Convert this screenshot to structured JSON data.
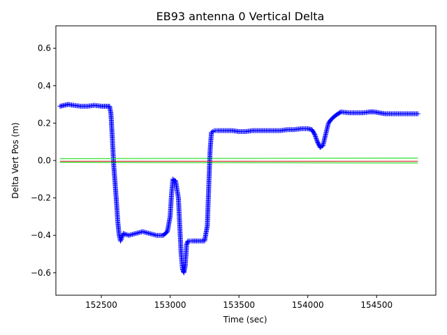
{
  "chart_data": {
    "type": "scatter",
    "title": "EB93 antenna 0 Vertical Delta",
    "xlabel": "Time (sec)",
    "ylabel": "Delta Vert Pos (m)",
    "xlim": [
      152170,
      154930
    ],
    "ylim": [
      -0.72,
      0.72
    ],
    "x_ticks": [
      152500,
      153000,
      153500,
      154000,
      154500
    ],
    "x_tick_labels": [
      "152500",
      "153000",
      "153500",
      "154000",
      "154500"
    ],
    "y_ticks": [
      -0.6,
      -0.4,
      -0.2,
      0.0,
      0.2,
      0.4,
      0.6
    ],
    "y_tick_labels": [
      "−0.6",
      "−0.4",
      "−0.2",
      "0.0",
      "0.2",
      "0.4",
      "0.6"
    ],
    "grid": false,
    "series": [
      {
        "color": "#0000ff",
        "marker": "+",
        "x": [
          152200,
          152230,
          152260,
          152300,
          152350,
          152400,
          152450,
          152500,
          152530,
          152560,
          152570,
          152580,
          152590,
          152600,
          152610,
          152620,
          152630,
          152640,
          152660,
          152700,
          152750,
          152800,
          152850,
          152900,
          152950,
          152980,
          153000,
          153010,
          153020,
          153040,
          153060,
          153070,
          153080,
          153090,
          153100,
          153110,
          153120,
          153130,
          153140,
          153160,
          153200,
          153250,
          153270,
          153280,
          153290,
          153300,
          153310,
          153320,
          153340,
          153400,
          153450,
          153500,
          153550,
          153600,
          153650,
          153700,
          153750,
          153800,
          153850,
          153900,
          153950,
          154000,
          154030,
          154050,
          154070,
          154090,
          154110,
          154130,
          154150,
          154170,
          154200,
          154240,
          154300,
          154350,
          154400,
          154450,
          154480,
          154520,
          154560,
          154600,
          154650,
          154700,
          154750,
          154800
        ],
        "y": [
          0.29,
          0.295,
          0.3,
          0.295,
          0.29,
          0.29,
          0.295,
          0.29,
          0.29,
          0.29,
          0.25,
          0.12,
          -0.02,
          -0.12,
          -0.22,
          -0.33,
          -0.4,
          -0.43,
          -0.39,
          -0.4,
          -0.39,
          -0.38,
          -0.39,
          -0.4,
          -0.4,
          -0.38,
          -0.3,
          -0.18,
          -0.1,
          -0.11,
          -0.2,
          -0.35,
          -0.5,
          -0.58,
          -0.6,
          -0.56,
          -0.45,
          -0.43,
          -0.43,
          -0.43,
          -0.43,
          -0.43,
          -0.35,
          -0.15,
          0.05,
          0.15,
          0.155,
          0.16,
          0.16,
          0.16,
          0.16,
          0.155,
          0.155,
          0.16,
          0.16,
          0.16,
          0.16,
          0.16,
          0.165,
          0.165,
          0.17,
          0.17,
          0.165,
          0.14,
          0.1,
          0.07,
          0.08,
          0.14,
          0.2,
          0.22,
          0.24,
          0.26,
          0.255,
          0.255,
          0.255,
          0.26,
          0.26,
          0.255,
          0.25,
          0.25,
          0.25,
          0.25,
          0.25,
          0.25
        ]
      },
      {
        "color": "#00dd00",
        "x": [
          152200,
          154800
        ],
        "y": [
          0.01,
          0.013
        ]
      },
      {
        "color": "#00dd00",
        "x": [
          152200,
          154800
        ],
        "y": [
          -0.01,
          -0.013
        ]
      },
      {
        "color": "#cc0000",
        "x": [
          152200,
          154800
        ],
        "y": [
          -0.004,
          -0.004
        ]
      }
    ]
  }
}
